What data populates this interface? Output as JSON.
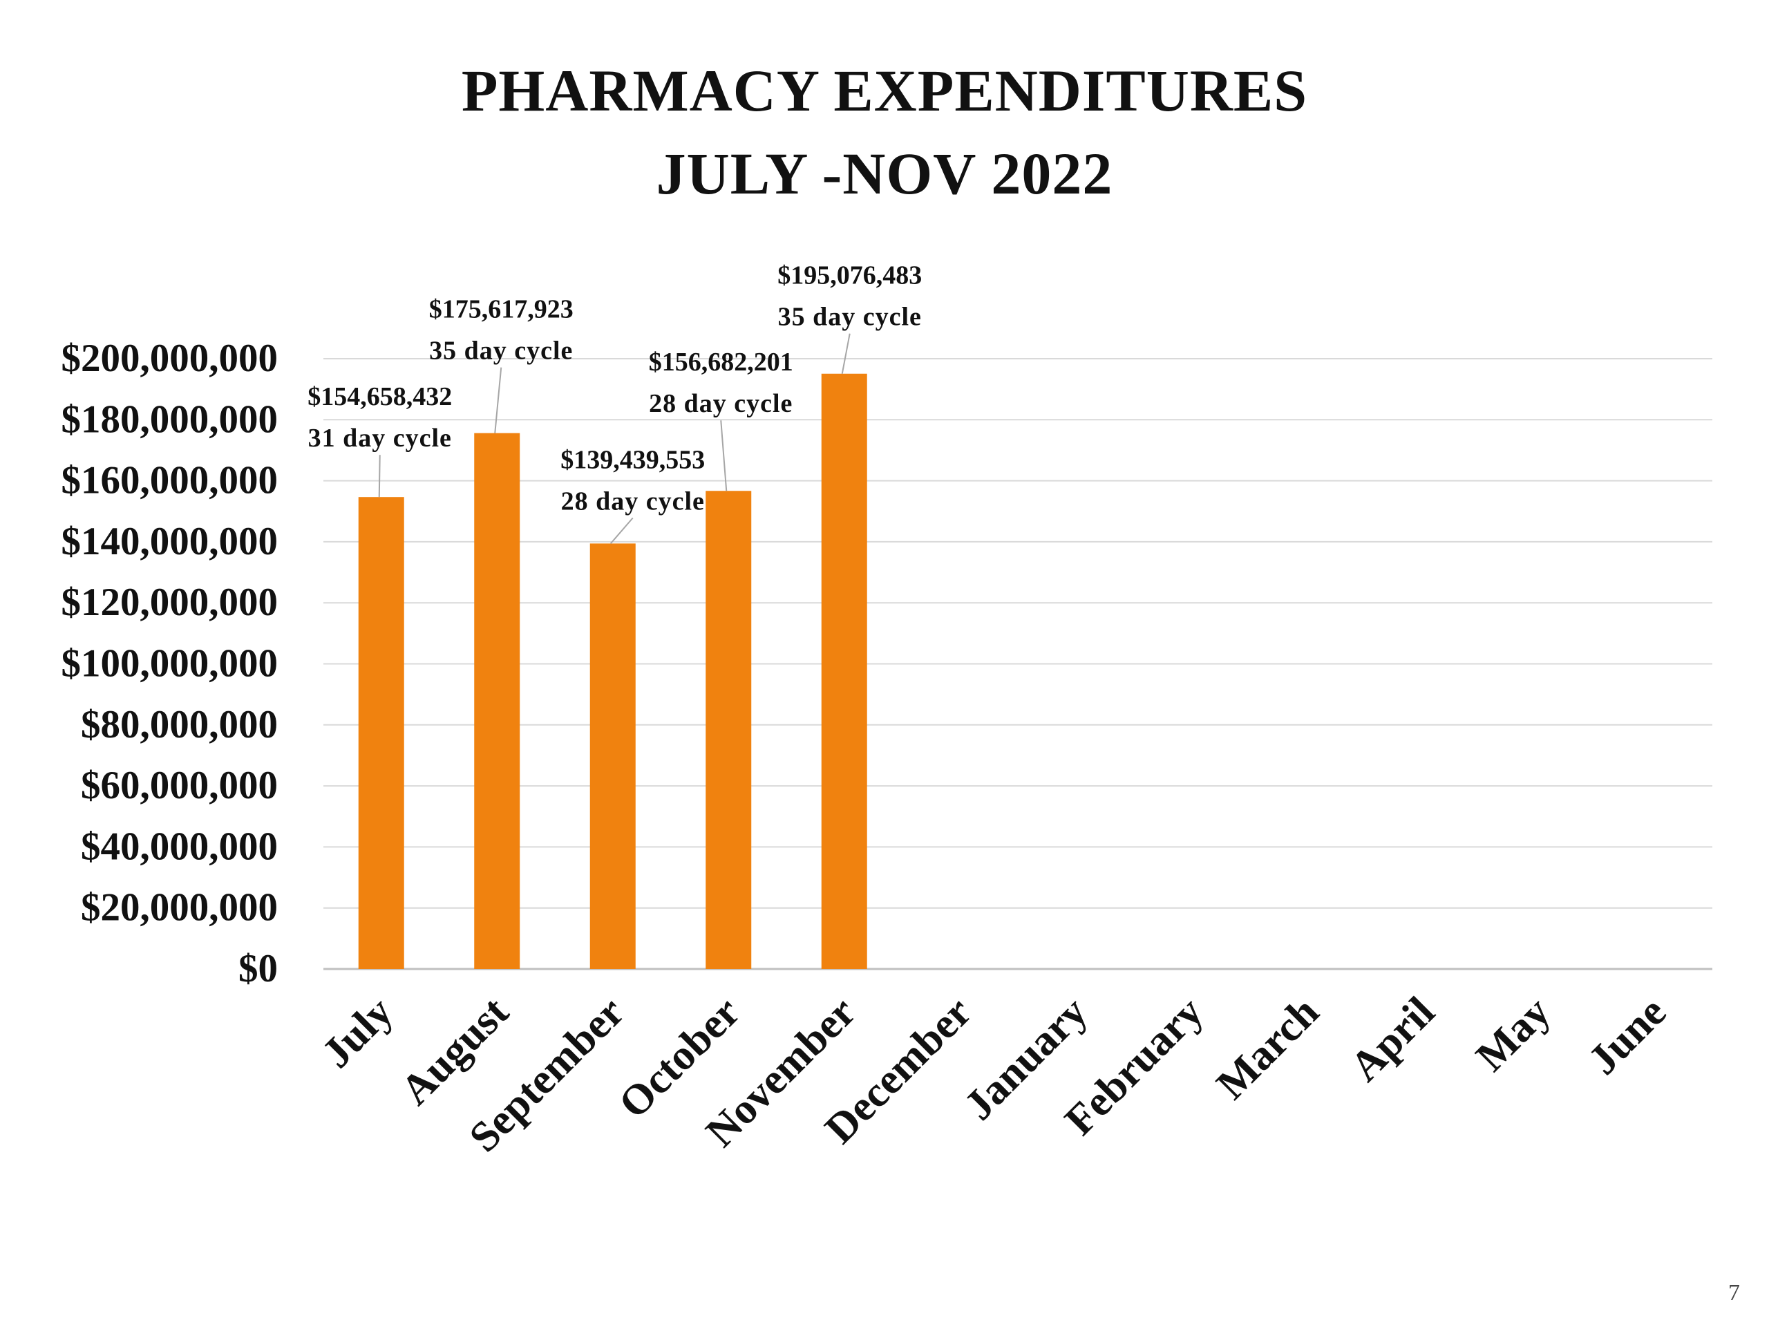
{
  "slide": {
    "title_line1": "PHARMACY EXPENDITURES",
    "title_line2": "JULY -NOV 2022",
    "page_number": "7"
  },
  "chart_data": {
    "type": "bar",
    "title": "PHARMACY EXPENDITURES JULY -NOV 2022",
    "xlabel": "",
    "ylabel": "",
    "categories": [
      "July",
      "August",
      "September",
      "October",
      "November",
      "December",
      "January",
      "February",
      "March",
      "April",
      "May",
      "June"
    ],
    "values": [
      154658432,
      175617923,
      139439553,
      156682201,
      195076483,
      null,
      null,
      null,
      null,
      null,
      null,
      null
    ],
    "data_labels": [
      {
        "value": "$154,658,432",
        "note": "31 day cycle"
      },
      {
        "value": "$175,617,923",
        "note": "35 day cycle"
      },
      {
        "value": "$139,439,553",
        "note": "28 day cycle"
      },
      {
        "value": "$156,682,201",
        "note": "28 day cycle"
      },
      {
        "value": "$195,076,483",
        "note": "35 day cycle"
      },
      null,
      null,
      null,
      null,
      null,
      null,
      null
    ],
    "ylim": [
      0,
      200000000
    ],
    "yticks": [
      0,
      20000000,
      40000000,
      60000000,
      80000000,
      100000000,
      120000000,
      140000000,
      160000000,
      180000000,
      200000000
    ],
    "ytick_labels": [
      "$0",
      "$20,000,000",
      "$40,000,000",
      "$60,000,000",
      "$80,000,000",
      "$100,000,000",
      "$120,000,000",
      "$140,000,000",
      "$160,000,000",
      "$180,000,000",
      "$200,000,000"
    ],
    "grid": true,
    "colors": {
      "bar": "#F0820F",
      "grid": "#D9D9D9",
      "leader": "#A6A6A6",
      "text": "#111111"
    }
  }
}
